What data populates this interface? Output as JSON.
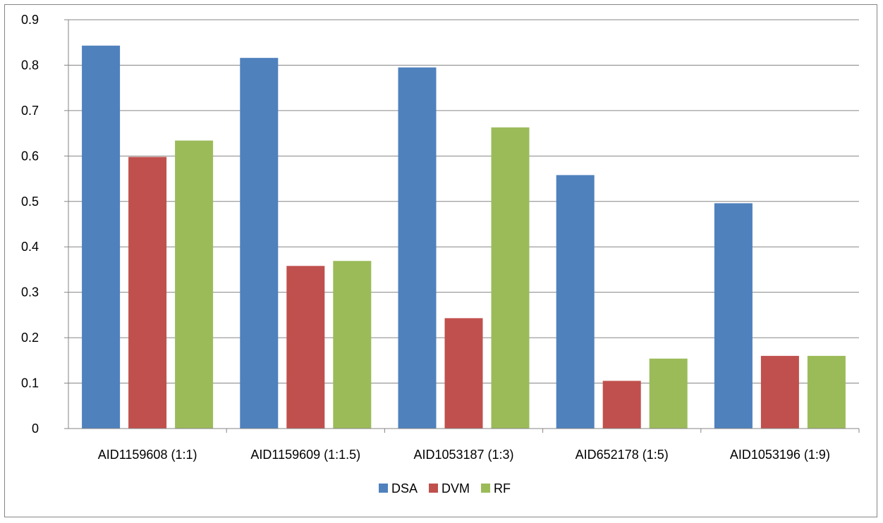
{
  "chart_data": {
    "type": "bar",
    "title": "",
    "xlabel": "",
    "ylabel": "",
    "ylim": [
      0,
      0.9
    ],
    "yticks": [
      "0",
      "0.1",
      "0.2",
      "0.3",
      "0.4",
      "0.5",
      "0.6",
      "0.7",
      "0.8",
      "0.9"
    ],
    "grid": true,
    "legend_position": "bottom",
    "categories": [
      "AID1159608 (1:1)",
      "AID1159609 (1:1.5)",
      "AID1053187 (1:3)",
      "AID652178 (1:5)",
      "AID1053196 (1:9)"
    ],
    "series": [
      {
        "name": "DSA",
        "color": "#4F81BD",
        "values": [
          0.843,
          0.816,
          0.795,
          0.558,
          0.496
        ]
      },
      {
        "name": "DVM",
        "color": "#C0504D",
        "values": [
          0.598,
          0.358,
          0.243,
          0.105,
          0.16
        ]
      },
      {
        "name": "RF",
        "color": "#9BBB59",
        "values": [
          0.634,
          0.369,
          0.663,
          0.154,
          0.16
        ]
      }
    ]
  }
}
